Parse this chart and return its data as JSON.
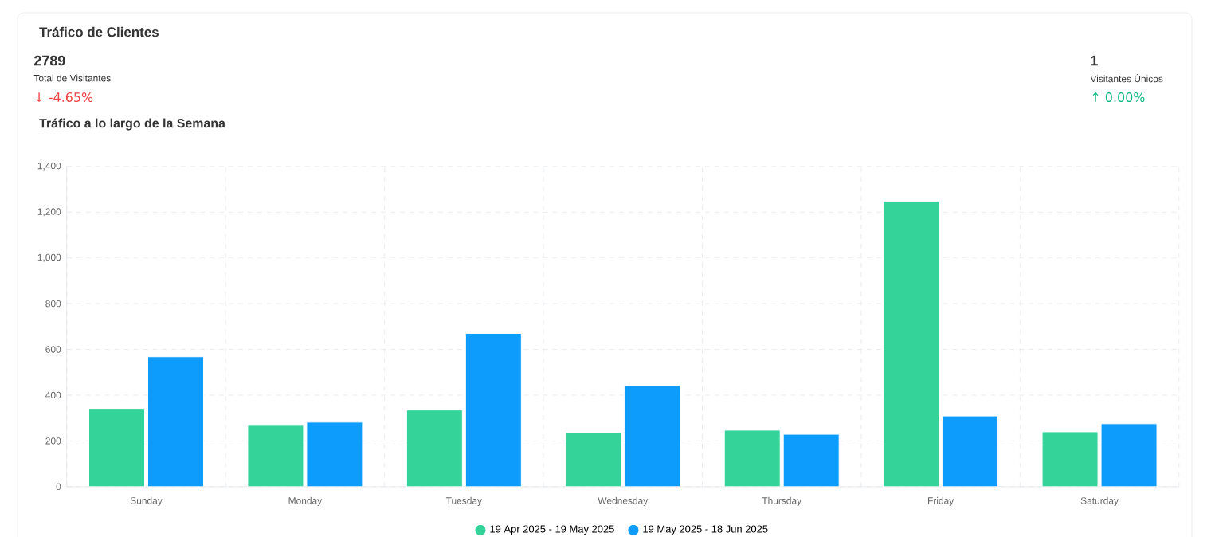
{
  "chart_data": {
    "type": "bar",
    "title": "Tráfico de Clientes",
    "subtitle": "Tráfico a lo largo de la Semana",
    "annotations": [
      "2789",
      "Total de Visitantes",
      "↓ -4.65%",
      "1",
      "Visitantes Únicos",
      "↑ 0.00%"
    ],
    "categories": [
      "Sunday",
      "Monday",
      "Tuesday",
      "Wednesday",
      "Thursday",
      "Friday",
      "Saturday"
    ],
    "series": [
      {
        "name": "19 Apr 2025 - 19 May 2025",
        "color": "#34d399",
        "values": [
          342,
          268,
          335,
          236,
          247,
          1247,
          240
        ]
      },
      {
        "name": "19 May 2025 - 18 Jun 2025",
        "color": "#0e9cfc",
        "values": [
          568,
          282,
          670,
          443,
          229,
          309,
          275
        ]
      }
    ],
    "ylim": [
      0,
      1400
    ],
    "yticks": [
      0,
      200,
      400,
      600,
      800,
      {
        "value": 1000,
        "label": "1,000"
      },
      {
        "value": 1200,
        "label": "1,200"
      },
      {
        "value": 1400,
        "label": "1,400"
      }
    ],
    "grid": true,
    "legend": "bottom"
  }
}
